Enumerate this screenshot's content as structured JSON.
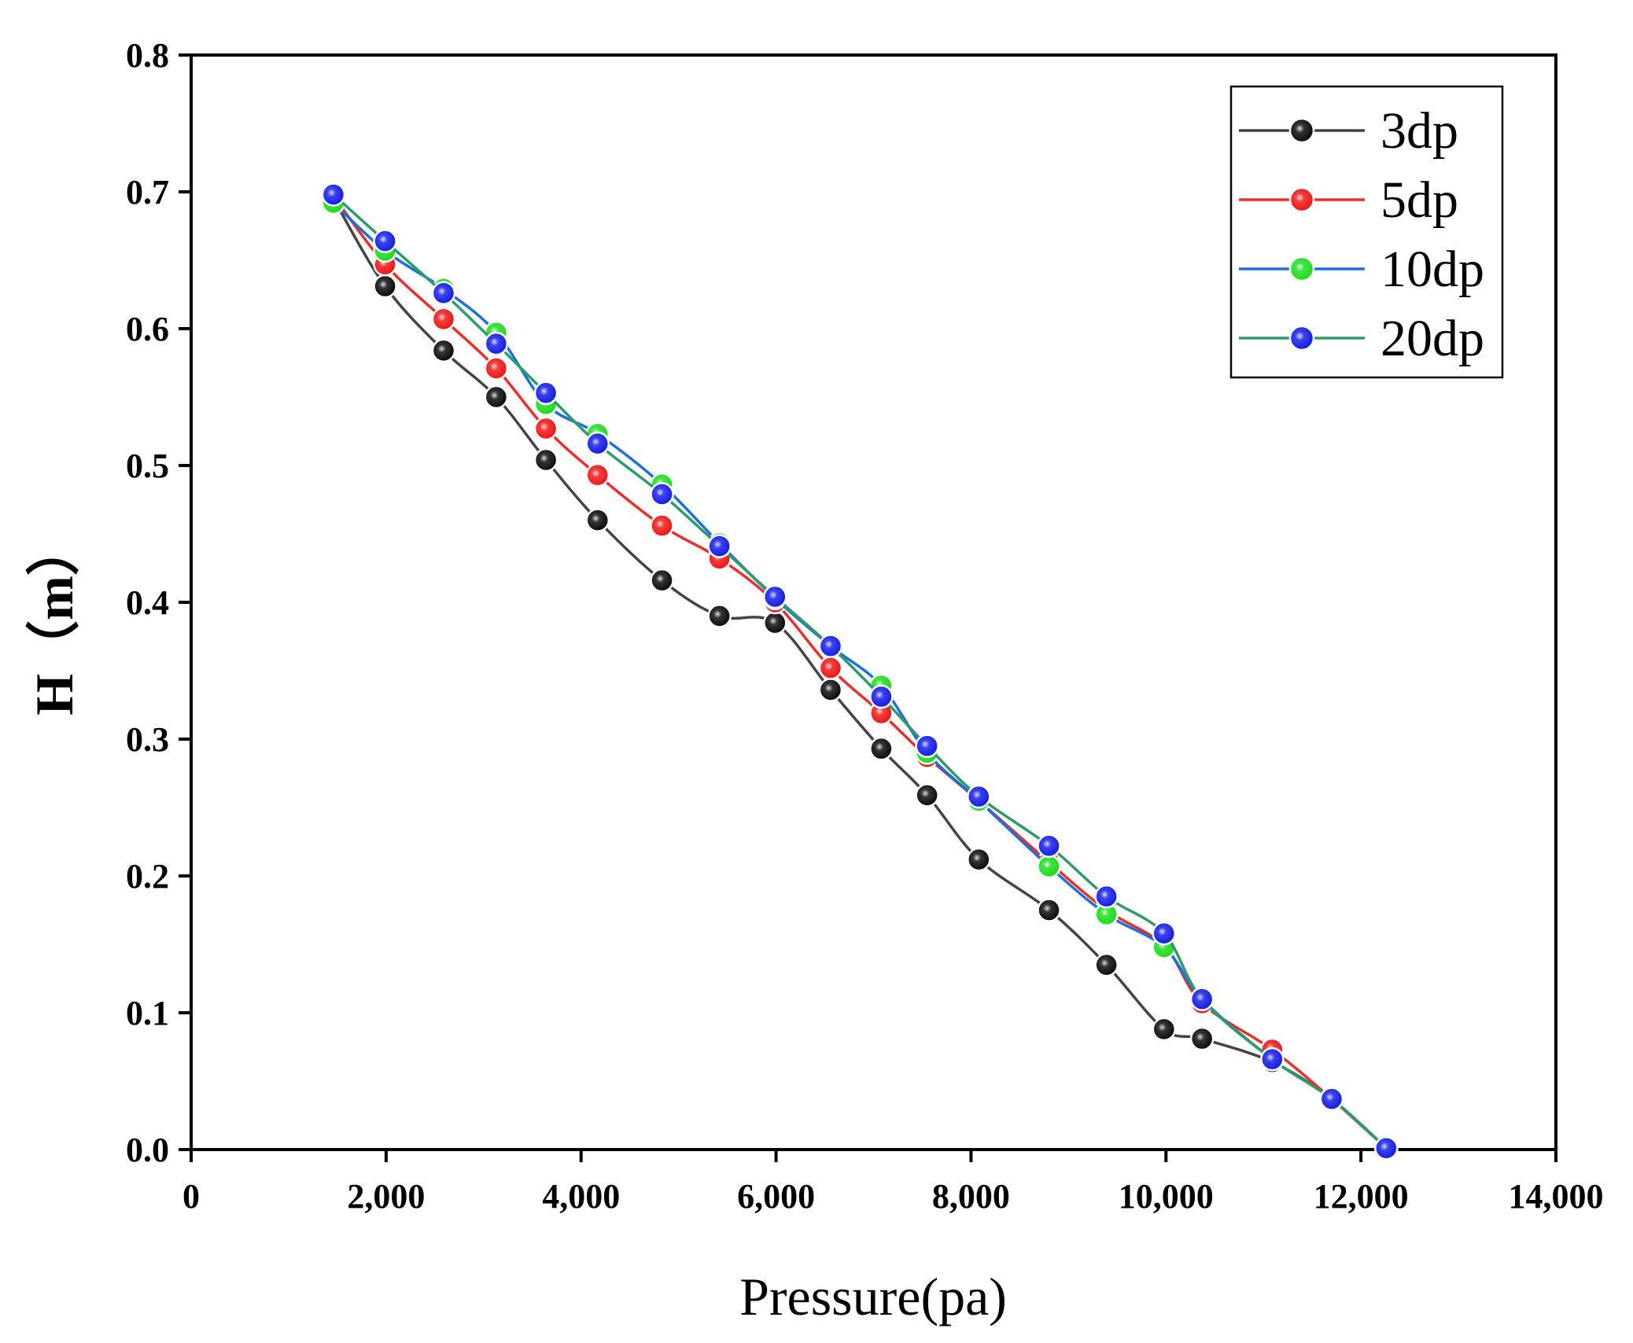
{
  "chart_data": {
    "type": "line",
    "title": "",
    "xlabel": "Pressure(pa)",
    "ylabel": "H（m）",
    "xlim": [
      0,
      14000
    ],
    "ylim": [
      0,
      0.8
    ],
    "xticks": [
      0,
      2000,
      4000,
      6000,
      8000,
      10000,
      12000,
      14000
    ],
    "xtick_labels": [
      "0",
      "2,000",
      "4,000",
      "6,000",
      "8,000",
      "10,000",
      "12,000",
      "14,000"
    ],
    "yticks": [
      0,
      0.1,
      0.2,
      0.3,
      0.4,
      0.5,
      0.6,
      0.7,
      0.8
    ],
    "ytick_labels": [
      "0.0",
      "0.1",
      "0.2",
      "0.3",
      "0.4",
      "0.5",
      "0.6",
      "0.7",
      "0.8"
    ],
    "grid": false,
    "legend_position": "top-right",
    "series": [
      {
        "name": "3dp",
        "line_color": "#444444",
        "marker_color": "#111111",
        "points": [
          [
            1460,
            0.695
          ],
          [
            1990,
            0.631
          ],
          [
            2590,
            0.584
          ],
          [
            3130,
            0.55
          ],
          [
            3640,
            0.504
          ],
          [
            4170,
            0.46
          ],
          [
            4830,
            0.416
          ],
          [
            5420,
            0.39
          ],
          [
            5990,
            0.385
          ],
          [
            6560,
            0.336
          ],
          [
            7080,
            0.293
          ],
          [
            7550,
            0.259
          ],
          [
            8080,
            0.212
          ],
          [
            8800,
            0.175
          ],
          [
            9390,
            0.135
          ],
          [
            9980,
            0.088
          ],
          [
            10370,
            0.081
          ],
          [
            11090,
            0.064
          ],
          [
            11700,
            0.037
          ],
          [
            12260,
            0.001
          ]
        ]
      },
      {
        "name": "5dp",
        "line_color": "#e8302a",
        "marker_color": "#ee1c1c",
        "points": [
          [
            1460,
            0.697
          ],
          [
            1990,
            0.647
          ],
          [
            2590,
            0.607
          ],
          [
            3130,
            0.571
          ],
          [
            3640,
            0.527
          ],
          [
            4170,
            0.493
          ],
          [
            4830,
            0.456
          ],
          [
            5420,
            0.432
          ],
          [
            5990,
            0.4
          ],
          [
            6560,
            0.352
          ],
          [
            7080,
            0.319
          ],
          [
            7550,
            0.287
          ],
          [
            8080,
            0.255
          ],
          [
            8800,
            0.21
          ],
          [
            9390,
            0.175
          ],
          [
            9980,
            0.149
          ],
          [
            10370,
            0.107
          ],
          [
            11090,
            0.073
          ],
          [
            11700,
            0.037
          ],
          [
            12260,
            0.001
          ]
        ]
      },
      {
        "name": "10dp",
        "line_color": "#1e6fd9",
        "marker_color": "#22dd22",
        "points": [
          [
            1460,
            0.692
          ],
          [
            1990,
            0.657
          ],
          [
            2590,
            0.629
          ],
          [
            3130,
            0.597
          ],
          [
            3640,
            0.545
          ],
          [
            4170,
            0.523
          ],
          [
            4830,
            0.486
          ],
          [
            5420,
            0.443
          ],
          [
            5990,
            0.403
          ],
          [
            6560,
            0.368
          ],
          [
            7080,
            0.339
          ],
          [
            7550,
            0.29
          ],
          [
            8080,
            0.255
          ],
          [
            8800,
            0.207
          ],
          [
            9390,
            0.172
          ],
          [
            9980,
            0.148
          ],
          [
            10370,
            0.11
          ],
          [
            11090,
            0.066
          ],
          [
            11700,
            0.037
          ],
          [
            12260,
            0.001
          ]
        ]
      },
      {
        "name": "20dp",
        "line_color": "#2e9c6a",
        "marker_color": "#1a22e6",
        "points": [
          [
            1460,
            0.698
          ],
          [
            1990,
            0.664
          ],
          [
            2590,
            0.626
          ],
          [
            3130,
            0.589
          ],
          [
            3640,
            0.553
          ],
          [
            4170,
            0.516
          ],
          [
            4830,
            0.479
          ],
          [
            5420,
            0.441
          ],
          [
            5990,
            0.404
          ],
          [
            6560,
            0.368
          ],
          [
            7080,
            0.331
          ],
          [
            7550,
            0.295
          ],
          [
            8080,
            0.258
          ],
          [
            8800,
            0.222
          ],
          [
            9390,
            0.185
          ],
          [
            9980,
            0.158
          ],
          [
            10370,
            0.11
          ],
          [
            11090,
            0.066
          ],
          [
            11700,
            0.037
          ],
          [
            12260,
            0.001
          ]
        ]
      }
    ]
  }
}
